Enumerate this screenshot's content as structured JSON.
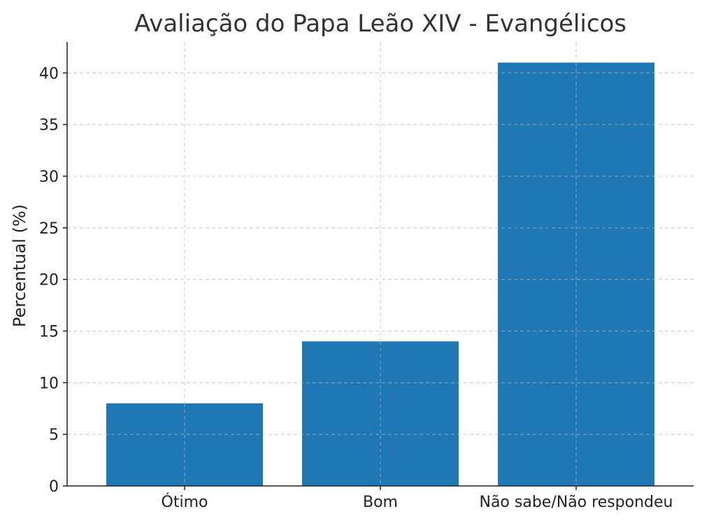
{
  "chart_data": {
    "type": "bar",
    "title": "Avaliação do Papa Leão XIV - Evangélicos",
    "xlabel": "",
    "ylabel": "Percentual (%)",
    "categories": [
      "Ótimo",
      "Bom",
      "Não sabe/Não respondeu"
    ],
    "values": [
      8,
      14,
      41
    ],
    "ylim": [
      0,
      43
    ],
    "yticks": [
      0,
      5,
      10,
      15,
      20,
      25,
      30,
      35,
      40
    ],
    "grid": true,
    "bar_color": "#1f77b4"
  }
}
